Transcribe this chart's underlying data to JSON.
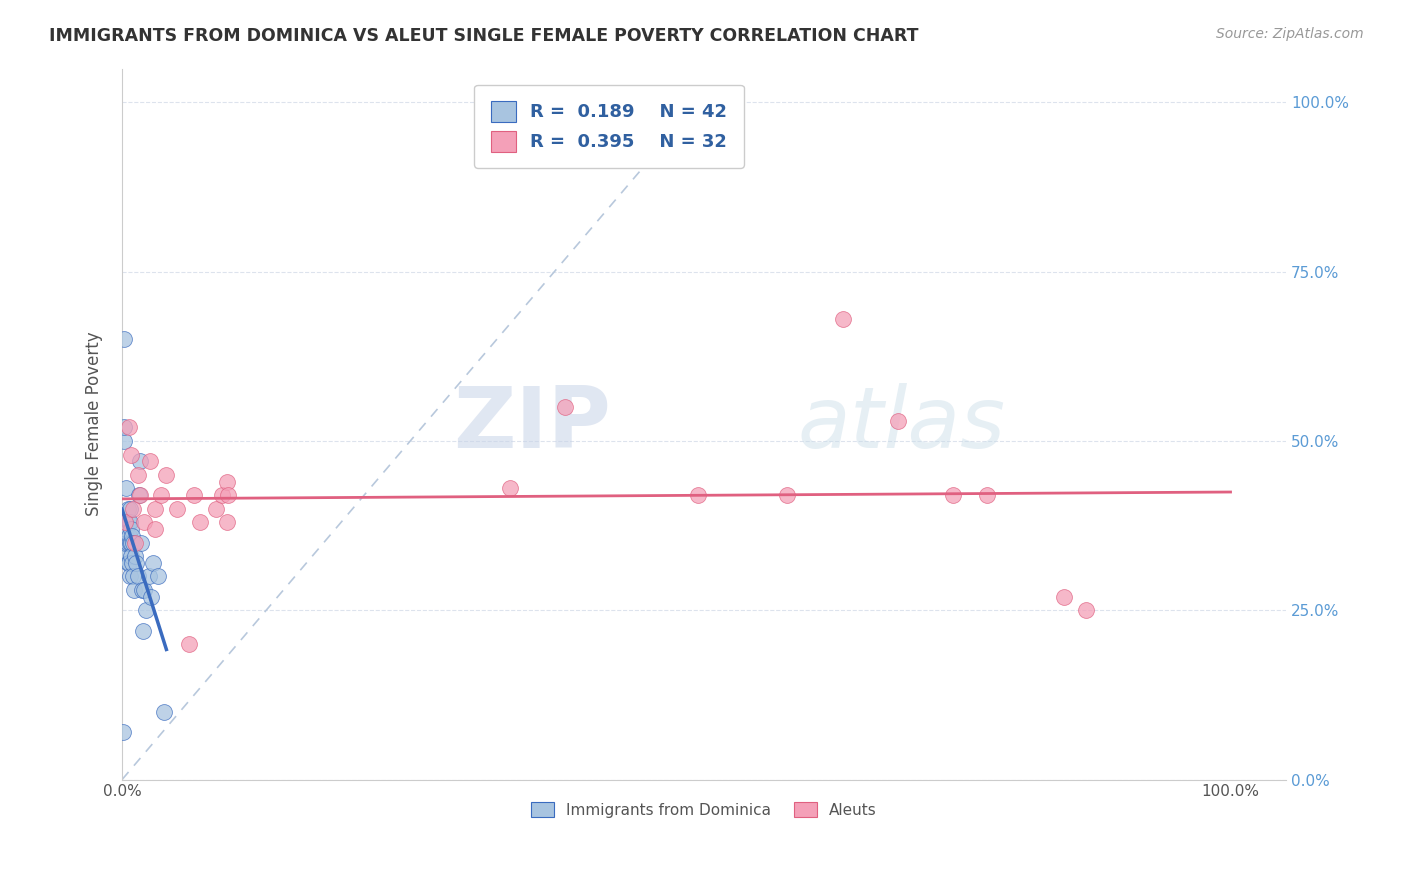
{
  "title": "IMMIGRANTS FROM DOMINICA VS ALEUT SINGLE FEMALE POVERTY CORRELATION CHART",
  "source": "Source: ZipAtlas.com",
  "ylabel": "Single Female Poverty",
  "legend_label1": "Immigrants from Dominica",
  "legend_label2": "Aleuts",
  "r1": 0.189,
  "n1": 42,
  "r2": 0.395,
  "n2": 32,
  "color_dominica": "#a8c4e0",
  "color_aleuts": "#f4a0b8",
  "line_color_dominica": "#3a6bbf",
  "line_color_aleuts": "#e06080",
  "diagonal_color": "#b8c8dc",
  "watermark_zip": "ZIP",
  "watermark_atlas": "atlas",
  "dominica_x": [
    0.001,
    0.002,
    0.002,
    0.002,
    0.003,
    0.003,
    0.003,
    0.004,
    0.004,
    0.005,
    0.005,
    0.005,
    0.006,
    0.006,
    0.006,
    0.007,
    0.007,
    0.007,
    0.007,
    0.008,
    0.008,
    0.008,
    0.009,
    0.009,
    0.01,
    0.01,
    0.011,
    0.012,
    0.013,
    0.014,
    0.015,
    0.016,
    0.017,
    0.018,
    0.019,
    0.02,
    0.022,
    0.024,
    0.026,
    0.028,
    0.032,
    0.038
  ],
  "dominica_y": [
    0.07,
    0.65,
    0.5,
    0.52,
    0.33,
    0.35,
    0.38,
    0.43,
    0.37,
    0.32,
    0.35,
    0.4,
    0.38,
    0.36,
    0.32,
    0.3,
    0.35,
    0.38,
    0.4,
    0.37,
    0.35,
    0.33,
    0.36,
    0.32,
    0.35,
    0.3,
    0.28,
    0.33,
    0.32,
    0.3,
    0.42,
    0.47,
    0.35,
    0.28,
    0.22,
    0.28,
    0.25,
    0.3,
    0.27,
    0.32,
    0.3,
    0.1
  ],
  "aleuts_x": [
    0.003,
    0.006,
    0.008,
    0.01,
    0.012,
    0.014,
    0.016,
    0.02,
    0.025,
    0.03,
    0.03,
    0.035,
    0.04,
    0.05,
    0.06,
    0.065,
    0.07,
    0.085,
    0.09,
    0.095,
    0.095,
    0.096,
    0.35,
    0.4,
    0.52,
    0.6,
    0.65,
    0.7,
    0.75,
    0.78,
    0.85,
    0.87
  ],
  "aleuts_y": [
    0.38,
    0.52,
    0.48,
    0.4,
    0.35,
    0.45,
    0.42,
    0.38,
    0.47,
    0.4,
    0.37,
    0.42,
    0.45,
    0.4,
    0.2,
    0.42,
    0.38,
    0.4,
    0.42,
    0.44,
    0.38,
    0.42,
    0.43,
    0.55,
    0.42,
    0.42,
    0.68,
    0.53,
    0.42,
    0.42,
    0.27,
    0.25
  ],
  "ylim": [
    0.0,
    1.05
  ],
  "xlim": [
    0.0,
    1.05
  ],
  "yticks": [
    0.0,
    0.25,
    0.5,
    0.75,
    1.0
  ],
  "yticklabels": [
    "0.0%",
    "25.0%",
    "50.0%",
    "75.0%",
    "100.0%"
  ],
  "xticks": [
    0.0,
    1.0
  ],
  "xticklabels": [
    "0.0%",
    "100.0%"
  ],
  "right_ytick_color": "#5b9bd5"
}
